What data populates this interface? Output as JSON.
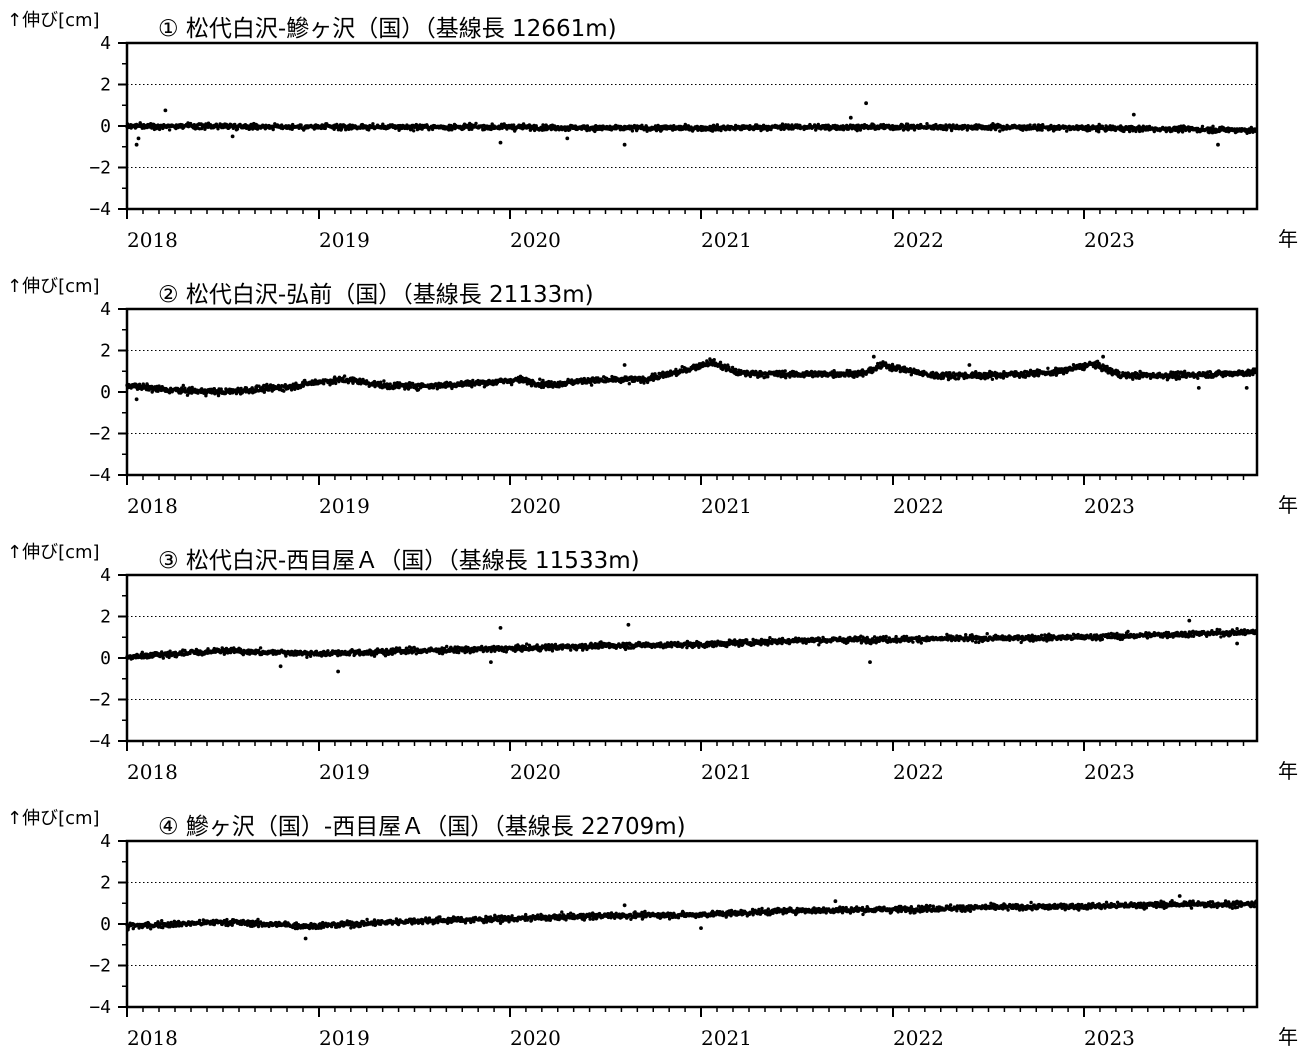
{
  "figure": {
    "y_axis_label": "↑伸び[cm]",
    "x_unit_label": "年",
    "y_ticks": [
      "4",
      "2",
      "0",
      "−2",
      "−4"
    ],
    "x_ticks": [
      "2018",
      "2019",
      "2020",
      "2021",
      "2022",
      "2023"
    ],
    "marker_color": "#000000",
    "gridline_style": "dotted"
  },
  "chart_data": [
    {
      "type": "scatter",
      "title": "① 松代白沢-鰺ヶ沢（国）（基線長 12661m)",
      "ylabel": "↑伸び[cm]",
      "xlabel": "年",
      "xlim": [
        2018.0,
        2023.9
      ],
      "ylim": [
        -4,
        4
      ],
      "grid_y": [
        2,
        -2
      ],
      "trend": [
        [
          2018.0,
          0.0
        ],
        [
          2018.5,
          0.0
        ],
        [
          2019.0,
          -0.05
        ],
        [
          2019.5,
          -0.05
        ],
        [
          2020.0,
          -0.05
        ],
        [
          2020.5,
          -0.1
        ],
        [
          2021.0,
          -0.1
        ],
        [
          2021.5,
          -0.05
        ],
        [
          2022.0,
          -0.05
        ],
        [
          2022.5,
          -0.05
        ],
        [
          2023.0,
          -0.1
        ],
        [
          2023.5,
          -0.15
        ],
        [
          2023.9,
          -0.2
        ]
      ],
      "noise_sd": 0.09,
      "outliers": [
        [
          2018.05,
          -0.9
        ],
        [
          2018.06,
          -0.6
        ],
        [
          2018.2,
          0.75
        ],
        [
          2019.95,
          -0.8
        ],
        [
          2020.6,
          -0.9
        ],
        [
          2021.78,
          0.4
        ],
        [
          2021.86,
          1.1
        ],
        [
          2023.26,
          0.55
        ],
        [
          2023.7,
          -0.9
        ],
        [
          2018.55,
          -0.5
        ],
        [
          2020.3,
          -0.6
        ]
      ]
    },
    {
      "type": "scatter",
      "title": "② 松代白沢-弘前（国）（基線長 21133m)",
      "ylabel": "↑伸び[cm]",
      "xlabel": "年",
      "xlim": [
        2018.0,
        2023.9
      ],
      "ylim": [
        -4,
        4
      ],
      "grid_y": [
        2,
        -2
      ],
      "trend": [
        [
          2018.0,
          0.3
        ],
        [
          2018.2,
          0.1
        ],
        [
          2018.5,
          0.0
        ],
        [
          2018.85,
          0.25
        ],
        [
          2019.0,
          0.5
        ],
        [
          2019.15,
          0.6
        ],
        [
          2019.35,
          0.3
        ],
        [
          2019.6,
          0.3
        ],
        [
          2019.95,
          0.5
        ],
        [
          2020.05,
          0.6
        ],
        [
          2020.2,
          0.35
        ],
        [
          2020.4,
          0.55
        ],
        [
          2020.7,
          0.6
        ],
        [
          2020.9,
          1.0
        ],
        [
          2021.05,
          1.45
        ],
        [
          2021.2,
          0.9
        ],
        [
          2021.5,
          0.85
        ],
        [
          2021.85,
          0.9
        ],
        [
          2021.95,
          1.3
        ],
        [
          2022.2,
          0.8
        ],
        [
          2022.5,
          0.8
        ],
        [
          2022.85,
          0.95
        ],
        [
          2023.05,
          1.35
        ],
        [
          2023.2,
          0.8
        ],
        [
          2023.5,
          0.8
        ],
        [
          2023.9,
          0.95
        ]
      ],
      "noise_sd": 0.11,
      "outliers": [
        [
          2018.05,
          -0.35
        ],
        [
          2020.6,
          1.3
        ],
        [
          2021.9,
          1.7
        ],
        [
          2022.4,
          1.3
        ],
        [
          2023.1,
          1.7
        ],
        [
          2023.6,
          0.2
        ],
        [
          2023.85,
          0.2
        ]
      ]
    },
    {
      "type": "scatter",
      "title": "③ 松代白沢-西目屋Ａ（国）（基線長 11533m)",
      "ylabel": "↑伸び[cm]",
      "xlabel": "年",
      "xlim": [
        2018.0,
        2023.9
      ],
      "ylim": [
        -4,
        4
      ],
      "grid_y": [
        2,
        -2
      ],
      "trend": [
        [
          2018.0,
          0.05
        ],
        [
          2018.5,
          0.35
        ],
        [
          2019.0,
          0.2
        ],
        [
          2019.5,
          0.35
        ],
        [
          2020.0,
          0.45
        ],
        [
          2020.5,
          0.6
        ],
        [
          2021.0,
          0.65
        ],
        [
          2021.5,
          0.85
        ],
        [
          2022.0,
          0.9
        ],
        [
          2022.5,
          0.95
        ],
        [
          2023.0,
          1.0
        ],
        [
          2023.5,
          1.15
        ],
        [
          2023.9,
          1.25
        ]
      ],
      "noise_sd": 0.1,
      "outliers": [
        [
          2018.8,
          -0.4
        ],
        [
          2019.1,
          -0.65
        ],
        [
          2019.95,
          1.45
        ],
        [
          2019.9,
          -0.2
        ],
        [
          2020.62,
          1.6
        ],
        [
          2021.88,
          -0.2
        ],
        [
          2023.55,
          1.8
        ],
        [
          2023.8,
          0.7
        ]
      ]
    },
    {
      "type": "scatter",
      "title": "④ 鰺ヶ沢（国）-西目屋Ａ（国）（基線長 22709m)",
      "ylabel": "↑伸び[cm]",
      "xlabel": "年",
      "xlim": [
        2018.0,
        2023.9
      ],
      "ylim": [
        -4,
        4
      ],
      "grid_y": [
        2,
        -2
      ],
      "trend": [
        [
          2018.0,
          -0.1
        ],
        [
          2018.5,
          0.1
        ],
        [
          2018.95,
          -0.1
        ],
        [
          2019.5,
          0.15
        ],
        [
          2020.0,
          0.25
        ],
        [
          2020.5,
          0.4
        ],
        [
          2021.0,
          0.45
        ],
        [
          2021.5,
          0.65
        ],
        [
          2022.0,
          0.7
        ],
        [
          2022.5,
          0.8
        ],
        [
          2023.0,
          0.85
        ],
        [
          2023.5,
          0.95
        ],
        [
          2023.9,
          0.95
        ]
      ],
      "noise_sd": 0.1,
      "outliers": [
        [
          2018.93,
          -0.7
        ],
        [
          2020.6,
          0.9
        ],
        [
          2021.0,
          -0.2
        ],
        [
          2021.7,
          1.1
        ],
        [
          2023.5,
          1.35
        ]
      ]
    }
  ]
}
